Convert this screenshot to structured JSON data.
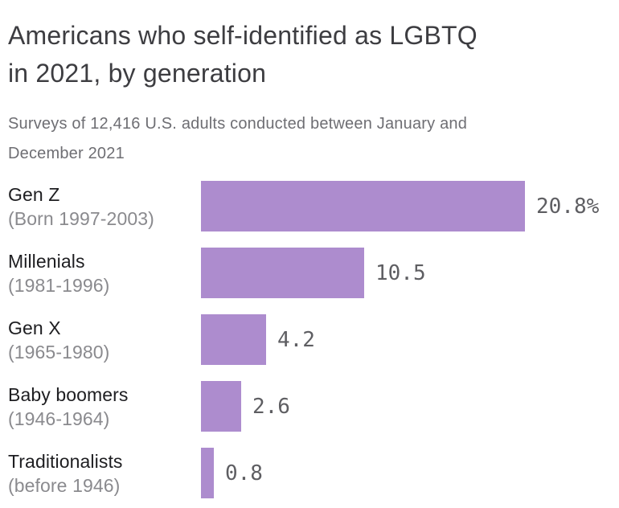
{
  "header": {
    "title_lines": [
      "Americans who self-identified as LGBTQ",
      "in 2021, by generation"
    ],
    "subtitle_lines": [
      "Surveys of 12,416 U.S. adults conducted between January and",
      "December 2021"
    ]
  },
  "chart_data": {
    "type": "bar",
    "orientation": "horizontal",
    "title": "Americans who self-identified as LGBTQ in 2021, by generation",
    "subtitle": "Surveys of 12,416 U.S. adults conducted between January and December 2021",
    "categories": [
      "Gen Z",
      "Millenials",
      "Gen X",
      "Baby boomers",
      "Traditionalists"
    ],
    "category_sublabels": [
      "(Born 1997-2003)",
      "(1981-1996)",
      "(1965-1980)",
      "(1946-1964)",
      "(before 1946)"
    ],
    "values": [
      20.8,
      10.5,
      4.2,
      2.6,
      0.8
    ],
    "value_labels": [
      "20.8%",
      "10.5",
      "4.2",
      "2.6",
      "0.8"
    ],
    "unit": "%",
    "xlim": [
      0,
      21.5
    ],
    "grid": false,
    "legend": false,
    "bar_color": "#ad8cce",
    "title_color": "#3d3d41",
    "subtitle_color": "#6e6e73",
    "label_color": "#1e1e21",
    "sublabel_color": "#8a8a8e",
    "value_color": "#5e5e62"
  }
}
